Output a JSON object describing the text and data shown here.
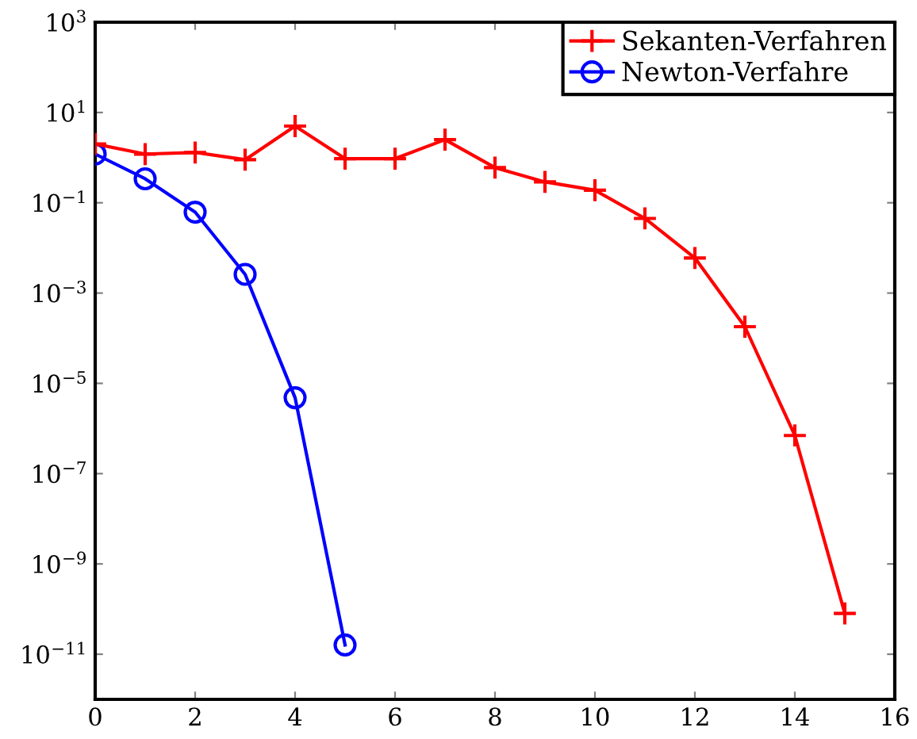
{
  "chart_data": {
    "type": "line",
    "log": "y",
    "x": [
      0,
      1,
      2,
      3,
      4,
      5,
      6,
      7,
      8,
      9,
      10,
      11,
      12,
      13,
      14,
      15
    ],
    "series": [
      {
        "name": "Sekanten-Verfahren",
        "color": "#ff0000",
        "marker": "cross",
        "values": [
          2,
          1.2,
          1.3,
          0.9,
          5,
          0.95,
          0.95,
          2.5,
          0.6,
          0.29,
          0.19,
          0.045,
          0.006,
          0.00018,
          7e-07,
          8e-11
        ]
      },
      {
        "name": "Newton-Verfahre",
        "color": "#0000ff",
        "marker": "circle",
        "x": [
          0,
          1,
          2,
          3,
          4,
          5
        ],
        "values": [
          1.2,
          0.34,
          0.062,
          0.0026,
          4.8e-06,
          1.6e-11
        ]
      }
    ],
    "xlim": [
      0,
      16
    ],
    "xticks": [
      0,
      2,
      4,
      6,
      8,
      10,
      12,
      14,
      16
    ],
    "ylim": [
      1e-12,
      1000
    ],
    "yticks": [
      {
        "value": 1e-11,
        "label": "10$^{−11}$"
      },
      {
        "value": 1e-09,
        "label": "10$^{−9}$"
      },
      {
        "value": 1e-07,
        "label": "10$^{−7}$"
      },
      {
        "value": 1e-05,
        "label": "10$^{−5}$"
      },
      {
        "value": 0.001,
        "label": "10$^{−3}$"
      },
      {
        "value": 0.1,
        "label": "10$^{−1}$"
      },
      {
        "value": 10,
        "label": "10$^{1}$"
      },
      {
        "value": 1000,
        "label": "10$^{3}$"
      }
    ],
    "legend": "top right",
    "grid": false,
    "line_style": "solid"
  }
}
